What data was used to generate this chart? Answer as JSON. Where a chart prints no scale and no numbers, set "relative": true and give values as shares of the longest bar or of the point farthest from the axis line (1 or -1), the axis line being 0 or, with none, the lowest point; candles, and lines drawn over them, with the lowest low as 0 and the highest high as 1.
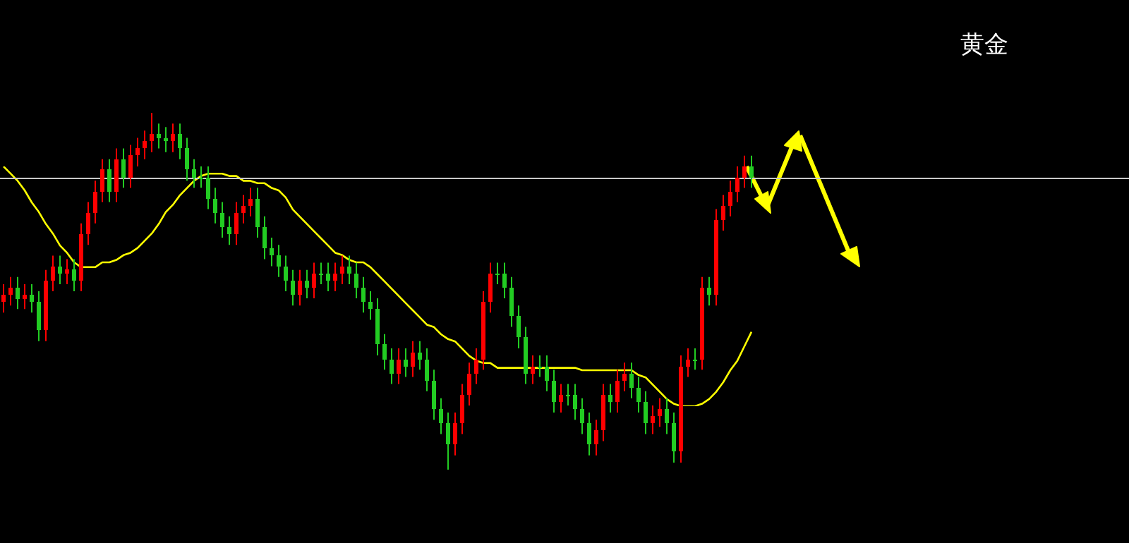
{
  "chart_data": [
    {
      "type": "candlestick",
      "relative": true,
      "categories": [
        null,
        null,
        null,
        null,
        null,
        null,
        null,
        null,
        null,
        null,
        null,
        null,
        null,
        null,
        null,
        null,
        null,
        null,
        null,
        null,
        null,
        null,
        null,
        null,
        null,
        null,
        null,
        null,
        null,
        null,
        null,
        null,
        null,
        null,
        null,
        null,
        null,
        null,
        null,
        null,
        null,
        null,
        null,
        null,
        null,
        null,
        null,
        null,
        null,
        null,
        null,
        null,
        null,
        null,
        null,
        null,
        null,
        null,
        null,
        null,
        null,
        null,
        null,
        null,
        null,
        null,
        null,
        null,
        null,
        null,
        null,
        null,
        null,
        null,
        null,
        null,
        null,
        null,
        null,
        null,
        null,
        null,
        null,
        null,
        null,
        null,
        null,
        null,
        null,
        null,
        null,
        null,
        null,
        null,
        null,
        null,
        null,
        null,
        null,
        null,
        null,
        null,
        null,
        null,
        null,
        null,
        null
      ],
      "ohlc": [
        [
          0.47,
          0.52,
          0.44,
          0.49
        ],
        [
          0.49,
          0.54,
          0.46,
          0.51
        ],
        [
          0.51,
          0.54,
          0.45,
          0.48
        ],
        [
          0.48,
          0.52,
          0.45,
          0.49
        ],
        [
          0.49,
          0.52,
          0.44,
          0.47
        ],
        [
          0.47,
          0.5,
          0.36,
          0.39
        ],
        [
          0.39,
          0.56,
          0.36,
          0.53
        ],
        [
          0.53,
          0.6,
          0.5,
          0.57
        ],
        [
          0.57,
          0.6,
          0.52,
          0.55
        ],
        [
          0.55,
          0.59,
          0.52,
          0.56
        ],
        [
          0.56,
          0.59,
          0.5,
          0.53
        ],
        [
          0.53,
          0.69,
          0.5,
          0.66
        ],
        [
          0.66,
          0.75,
          0.63,
          0.72
        ],
        [
          0.72,
          0.81,
          0.69,
          0.78
        ],
        [
          0.78,
          0.87,
          0.75,
          0.84
        ],
        [
          0.84,
          0.87,
          0.75,
          0.78
        ],
        [
          0.78,
          0.9,
          0.75,
          0.87
        ],
        [
          0.87,
          0.9,
          0.79,
          0.82
        ],
        [
          0.82,
          0.91,
          0.79,
          0.88
        ],
        [
          0.88,
          0.93,
          0.85,
          0.9
        ],
        [
          0.9,
          0.95,
          0.87,
          0.92
        ],
        [
          0.92,
          1.0,
          0.89,
          0.94
        ],
        [
          0.94,
          0.97,
          0.9,
          0.93
        ],
        [
          0.93,
          0.96,
          0.89,
          0.92
        ],
        [
          0.92,
          0.97,
          0.89,
          0.94
        ],
        [
          0.94,
          0.97,
          0.87,
          0.9
        ],
        [
          0.9,
          0.93,
          0.81,
          0.84
        ],
        [
          0.84,
          0.87,
          0.79,
          0.82
        ],
        [
          0.82,
          0.85,
          0.79,
          0.82
        ],
        [
          0.82,
          0.85,
          0.73,
          0.76
        ],
        [
          0.76,
          0.79,
          0.69,
          0.72
        ],
        [
          0.72,
          0.75,
          0.65,
          0.68
        ],
        [
          0.68,
          0.71,
          0.63,
          0.66
        ],
        [
          0.66,
          0.75,
          0.63,
          0.72
        ],
        [
          0.72,
          0.77,
          0.69,
          0.74
        ],
        [
          0.74,
          0.79,
          0.71,
          0.76
        ],
        [
          0.76,
          0.79,
          0.65,
          0.68
        ],
        [
          0.68,
          0.71,
          0.59,
          0.62
        ],
        [
          0.62,
          0.65,
          0.57,
          0.6
        ],
        [
          0.6,
          0.63,
          0.54,
          0.57
        ],
        [
          0.57,
          0.6,
          0.5,
          0.53
        ],
        [
          0.53,
          0.56,
          0.46,
          0.49
        ],
        [
          0.49,
          0.56,
          0.46,
          0.53
        ],
        [
          0.53,
          0.56,
          0.48,
          0.51
        ],
        [
          0.51,
          0.58,
          0.48,
          0.55
        ],
        [
          0.55,
          0.58,
          0.52,
          0.55
        ],
        [
          0.55,
          0.58,
          0.5,
          0.53
        ],
        [
          0.53,
          0.58,
          0.5,
          0.55
        ],
        [
          0.55,
          0.6,
          0.52,
          0.57
        ],
        [
          0.57,
          0.6,
          0.52,
          0.55
        ],
        [
          0.55,
          0.58,
          0.48,
          0.51
        ],
        [
          0.51,
          0.54,
          0.44,
          0.47
        ],
        [
          0.47,
          0.5,
          0.42,
          0.45
        ],
        [
          0.45,
          0.48,
          0.32,
          0.35
        ],
        [
          0.35,
          0.38,
          0.28,
          0.31
        ],
        [
          0.31,
          0.34,
          0.24,
          0.27
        ],
        [
          0.27,
          0.34,
          0.24,
          0.31
        ],
        [
          0.31,
          0.34,
          0.26,
          0.29
        ],
        [
          0.29,
          0.36,
          0.26,
          0.33
        ],
        [
          0.33,
          0.36,
          0.28,
          0.31
        ],
        [
          0.31,
          0.34,
          0.22,
          0.25
        ],
        [
          0.25,
          0.28,
          0.14,
          0.17
        ],
        [
          0.17,
          0.2,
          0.1,
          0.13
        ],
        [
          0.13,
          0.16,
          0.0,
          0.07
        ],
        [
          0.07,
          0.16,
          0.04,
          0.13
        ],
        [
          0.13,
          0.24,
          0.1,
          0.21
        ],
        [
          0.21,
          0.3,
          0.18,
          0.27
        ],
        [
          0.27,
          0.34,
          0.24,
          0.31
        ],
        [
          0.31,
          0.5,
          0.28,
          0.47
        ],
        [
          0.47,
          0.58,
          0.44,
          0.55
        ],
        [
          0.55,
          0.58,
          0.52,
          0.55
        ],
        [
          0.55,
          0.58,
          0.48,
          0.51
        ],
        [
          0.51,
          0.54,
          0.4,
          0.43
        ],
        [
          0.43,
          0.46,
          0.34,
          0.37
        ],
        [
          0.37,
          0.4,
          0.24,
          0.27
        ],
        [
          0.27,
          0.32,
          0.24,
          0.29
        ],
        [
          0.29,
          0.32,
          0.26,
          0.29
        ],
        [
          0.29,
          0.32,
          0.22,
          0.25
        ],
        [
          0.25,
          0.28,
          0.16,
          0.19
        ],
        [
          0.19,
          0.24,
          0.16,
          0.21
        ],
        [
          0.21,
          0.24,
          0.18,
          0.21
        ],
        [
          0.21,
          0.24,
          0.14,
          0.17
        ],
        [
          0.17,
          0.2,
          0.1,
          0.13
        ],
        [
          0.13,
          0.16,
          0.04,
          0.07
        ],
        [
          0.07,
          0.14,
          0.04,
          0.11
        ],
        [
          0.11,
          0.24,
          0.08,
          0.21
        ],
        [
          0.21,
          0.24,
          0.16,
          0.19
        ],
        [
          0.19,
          0.28,
          0.16,
          0.25
        ],
        [
          0.25,
          0.3,
          0.22,
          0.27
        ],
        [
          0.27,
          0.3,
          0.2,
          0.23
        ],
        [
          0.23,
          0.26,
          0.16,
          0.19
        ],
        [
          0.19,
          0.22,
          0.1,
          0.13
        ],
        [
          0.13,
          0.18,
          0.1,
          0.15
        ],
        [
          0.15,
          0.2,
          0.12,
          0.17
        ],
        [
          0.17,
          0.2,
          0.1,
          0.13
        ],
        [
          0.13,
          0.16,
          0.02,
          0.05
        ],
        [
          0.05,
          0.32,
          0.02,
          0.29
        ],
        [
          0.29,
          0.34,
          0.26,
          0.31
        ],
        [
          0.31,
          0.34,
          0.28,
          0.31
        ],
        [
          0.31,
          0.54,
          0.28,
          0.51
        ],
        [
          0.51,
          0.54,
          0.46,
          0.49
        ],
        [
          0.49,
          0.73,
          0.46,
          0.7
        ],
        [
          0.7,
          0.77,
          0.67,
          0.74
        ],
        [
          0.74,
          0.81,
          0.71,
          0.78
        ],
        [
          0.78,
          0.85,
          0.75,
          0.82
        ],
        [
          0.82,
          0.88,
          0.79,
          0.85
        ],
        [
          0.85,
          0.88,
          0.79,
          0.82
        ]
      ],
      "colors": [
        "#ff0000",
        "#ff0000",
        "#22cc22",
        "#ff0000",
        "#22cc22",
        "#22cc22",
        "#ff0000",
        "#ff0000",
        "#22cc22",
        "#ff0000",
        "#22cc22",
        "#ff0000",
        "#ff0000",
        "#ff0000",
        "#ff0000",
        "#22cc22",
        "#ff0000",
        "#22cc22",
        "#ff0000",
        "#ff0000",
        "#ff0000",
        "#ff0000",
        "#22cc22",
        "#22cc22",
        "#ff0000",
        "#22cc22",
        "#22cc22",
        "#22cc22",
        "#22cc22",
        "#22cc22",
        "#22cc22",
        "#22cc22",
        "#22cc22",
        "#ff0000",
        "#ff0000",
        "#ff0000",
        "#22cc22",
        "#22cc22",
        "#22cc22",
        "#22cc22",
        "#22cc22",
        "#22cc22",
        "#ff0000",
        "#22cc22",
        "#ff0000",
        "#22cc22",
        "#22cc22",
        "#ff0000",
        "#ff0000",
        "#22cc22",
        "#22cc22",
        "#22cc22",
        "#22cc22",
        "#22cc22",
        "#22cc22",
        "#22cc22",
        "#ff0000",
        "#22cc22",
        "#ff0000",
        "#22cc22",
        "#22cc22",
        "#22cc22",
        "#22cc22",
        "#22cc22",
        "#ff0000",
        "#ff0000",
        "#ff0000",
        "#ff0000",
        "#ff0000",
        "#ff0000",
        "#22cc22",
        "#22cc22",
        "#22cc22",
        "#22cc22",
        "#22cc22",
        "#ff0000",
        "#22cc22",
        "#22cc22",
        "#22cc22",
        "#ff0000",
        "#22cc22",
        "#22cc22",
        "#22cc22",
        "#22cc22",
        "#ff0000",
        "#ff0000",
        "#22cc22",
        "#ff0000",
        "#ff0000",
        "#22cc22",
        "#22cc22",
        "#22cc22",
        "#ff0000",
        "#ff0000",
        "#22cc22",
        "#22cc22",
        "#ff0000",
        "#ff0000",
        "#22cc22",
        "#ff0000",
        "#22cc22",
        "#ff0000",
        "#ff0000",
        "#ff0000",
        "#ff0000",
        "#ff0000",
        "#22cc22"
      ],
      "ref_lines": [
        {
          "axis": "y",
          "value": 0.82,
          "color": "#c8c8c8"
        }
      ]
    },
    {
      "type": "line",
      "relative": true,
      "marker": "none",
      "categories": [
        null,
        null,
        null,
        null,
        null,
        null,
        null,
        null,
        null,
        null,
        null,
        null,
        null,
        null,
        null,
        null,
        null,
        null,
        null,
        null,
        null,
        null,
        null,
        null,
        null,
        null,
        null,
        null,
        null,
        null,
        null,
        null,
        null,
        null,
        null,
        null,
        null,
        null,
        null,
        null,
        null,
        null,
        null,
        null,
        null,
        null,
        null,
        null,
        null,
        null,
        null,
        null,
        null,
        null,
        null,
        null,
        null,
        null,
        null,
        null,
        null,
        null,
        null,
        null,
        null,
        null,
        null,
        null,
        null,
        null,
        null,
        null,
        null,
        null,
        null,
        null,
        null,
        null,
        null,
        null,
        null,
        null,
        null,
        null,
        null,
        null,
        null,
        null,
        null,
        null,
        null,
        null,
        null,
        null,
        null,
        null,
        null,
        null,
        null,
        null,
        null,
        null,
        null,
        null,
        null,
        null,
        null
      ],
      "series": [
        {
          "color": "#ffff00",
          "values": [
            1.0,
            0.97,
            0.94,
            0.9,
            0.85,
            0.81,
            0.76,
            0.72,
            0.67,
            0.64,
            0.6,
            0.58,
            0.58,
            0.58,
            0.6,
            0.6,
            0.61,
            0.63,
            0.64,
            0.66,
            0.69,
            0.72,
            0.76,
            0.81,
            0.84,
            0.88,
            0.91,
            0.94,
            0.96,
            0.97,
            0.97,
            0.97,
            0.96,
            0.96,
            0.94,
            0.94,
            0.93,
            0.93,
            0.91,
            0.9,
            0.87,
            0.82,
            0.79,
            0.76,
            0.73,
            0.7,
            0.67,
            0.64,
            0.63,
            0.61,
            0.6,
            0.6,
            0.58,
            0.55,
            0.52,
            0.49,
            0.46,
            0.43,
            0.4,
            0.37,
            0.34,
            0.33,
            0.3,
            0.28,
            0.27,
            0.24,
            0.21,
            0.19,
            0.18,
            0.18,
            0.16,
            0.16,
            0.16,
            0.16,
            0.16,
            0.16,
            0.16,
            0.16,
            0.16,
            0.16,
            0.16,
            0.16,
            0.15,
            0.15,
            0.15,
            0.15,
            0.15,
            0.15,
            0.15,
            0.15,
            0.13,
            0.12,
            0.09,
            0.06,
            0.03,
            0.01,
            0,
            0,
            0,
            0.01,
            0.03,
            0.06,
            0.1,
            0.15,
            0.19,
            0.25,
            0.31
          ]
        }
      ]
    },
    {
      "type": "other",
      "title": "黄金"
    }
  ]
}
